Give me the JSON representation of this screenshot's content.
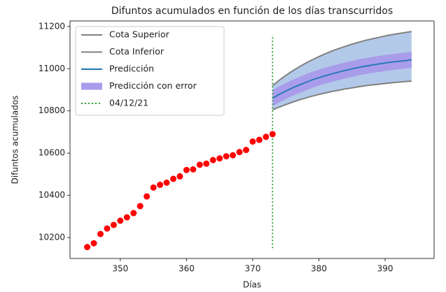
{
  "chart_data": {
    "type": "forecast",
    "title": "Difuntos acumulados en función de los días transcurridos",
    "x_label": "Días",
    "y_label": "Difuntos acumulados",
    "xlim": [
      342.4,
      397.4
    ],
    "ylim": [
      10101,
      11226
    ],
    "xticks": [
      350,
      360,
      370,
      380,
      390
    ],
    "yticks": [
      10200,
      10400,
      10600,
      10800,
      11000,
      11200
    ],
    "legend": "upper-left",
    "points": {
      "color": "#ff0000",
      "x": [
        345,
        346,
        347,
        348,
        349,
        350,
        351,
        352,
        353,
        354,
        355,
        356,
        357,
        358,
        359,
        360,
        361,
        362,
        363,
        364,
        365,
        366,
        367,
        368,
        369,
        370,
        371,
        372,
        373
      ],
      "values": [
        10155,
        10173,
        10217,
        10243,
        10260,
        10280,
        10296,
        10316,
        10349,
        10395,
        10437,
        10450,
        10460,
        10478,
        10490,
        10520,
        10523,
        10545,
        10550,
        10567,
        10575,
        10585,
        10590,
        10605,
        10615,
        10655,
        10663,
        10677,
        10690
      ]
    },
    "pred_x": [
      373,
      374,
      375,
      376,
      377,
      378,
      379,
      380,
      381,
      382,
      383,
      384,
      385,
      386,
      387,
      388,
      389,
      390,
      391,
      392,
      393,
      394
    ],
    "bound_fill": "#b3c9e9",
    "series": [
      {
        "name": "Cota Superior",
        "color": "#808080",
        "values": [
          10920,
          10945,
          10968,
          10989,
          11008,
          11026,
          11042,
          11057,
          11071,
          11084,
          11095,
          11106,
          11116,
          11125,
          11134,
          11141,
          11148,
          11155,
          11161,
          11166,
          11171,
          11176
        ]
      },
      {
        "name": "Cota Inferior",
        "color": "#808080",
        "values": [
          10805,
          10818,
          10830,
          10841,
          10852,
          10861,
          10870,
          10878,
          10885,
          10892,
          10898,
          10904,
          10909,
          10914,
          10919,
          10923,
          10926,
          10930,
          10933,
          10936,
          10939,
          10941
        ]
      },
      {
        "name": "Predicción",
        "color": "#1f77b4",
        "values": [
          10860,
          10878,
          10894,
          10909,
          10922,
          10935,
          10947,
          10957,
          10967,
          10976,
          10984,
          10992,
          10999,
          11006,
          11012,
          11017,
          11022,
          11027,
          11031,
          11035,
          11038,
          11042
        ]
      },
      {
        "name": "Predicción con error",
        "color": "#a99cea",
        "low": [
          10822,
          10840,
          10856,
          10871,
          10884,
          10897,
          10909,
          10919,
          10929,
          10938,
          10946,
          10954,
          10961,
          10968,
          10974,
          10979,
          10984,
          10989,
          10993,
          10997,
          11000,
          11004
        ],
        "high": [
          10898,
          10916,
          10932,
          10947,
          10960,
          10973,
          10985,
          10995,
          11005,
          11014,
          11022,
          11030,
          11037,
          11044,
          11050,
          11055,
          11060,
          11065,
          11069,
          11073,
          11076,
          11080
        ]
      }
    ],
    "marker_line": {
      "name": "04/12/21",
      "color": "#2ca02c",
      "x": 373,
      "ymin": 10150,
      "ymax": 11160
    }
  }
}
